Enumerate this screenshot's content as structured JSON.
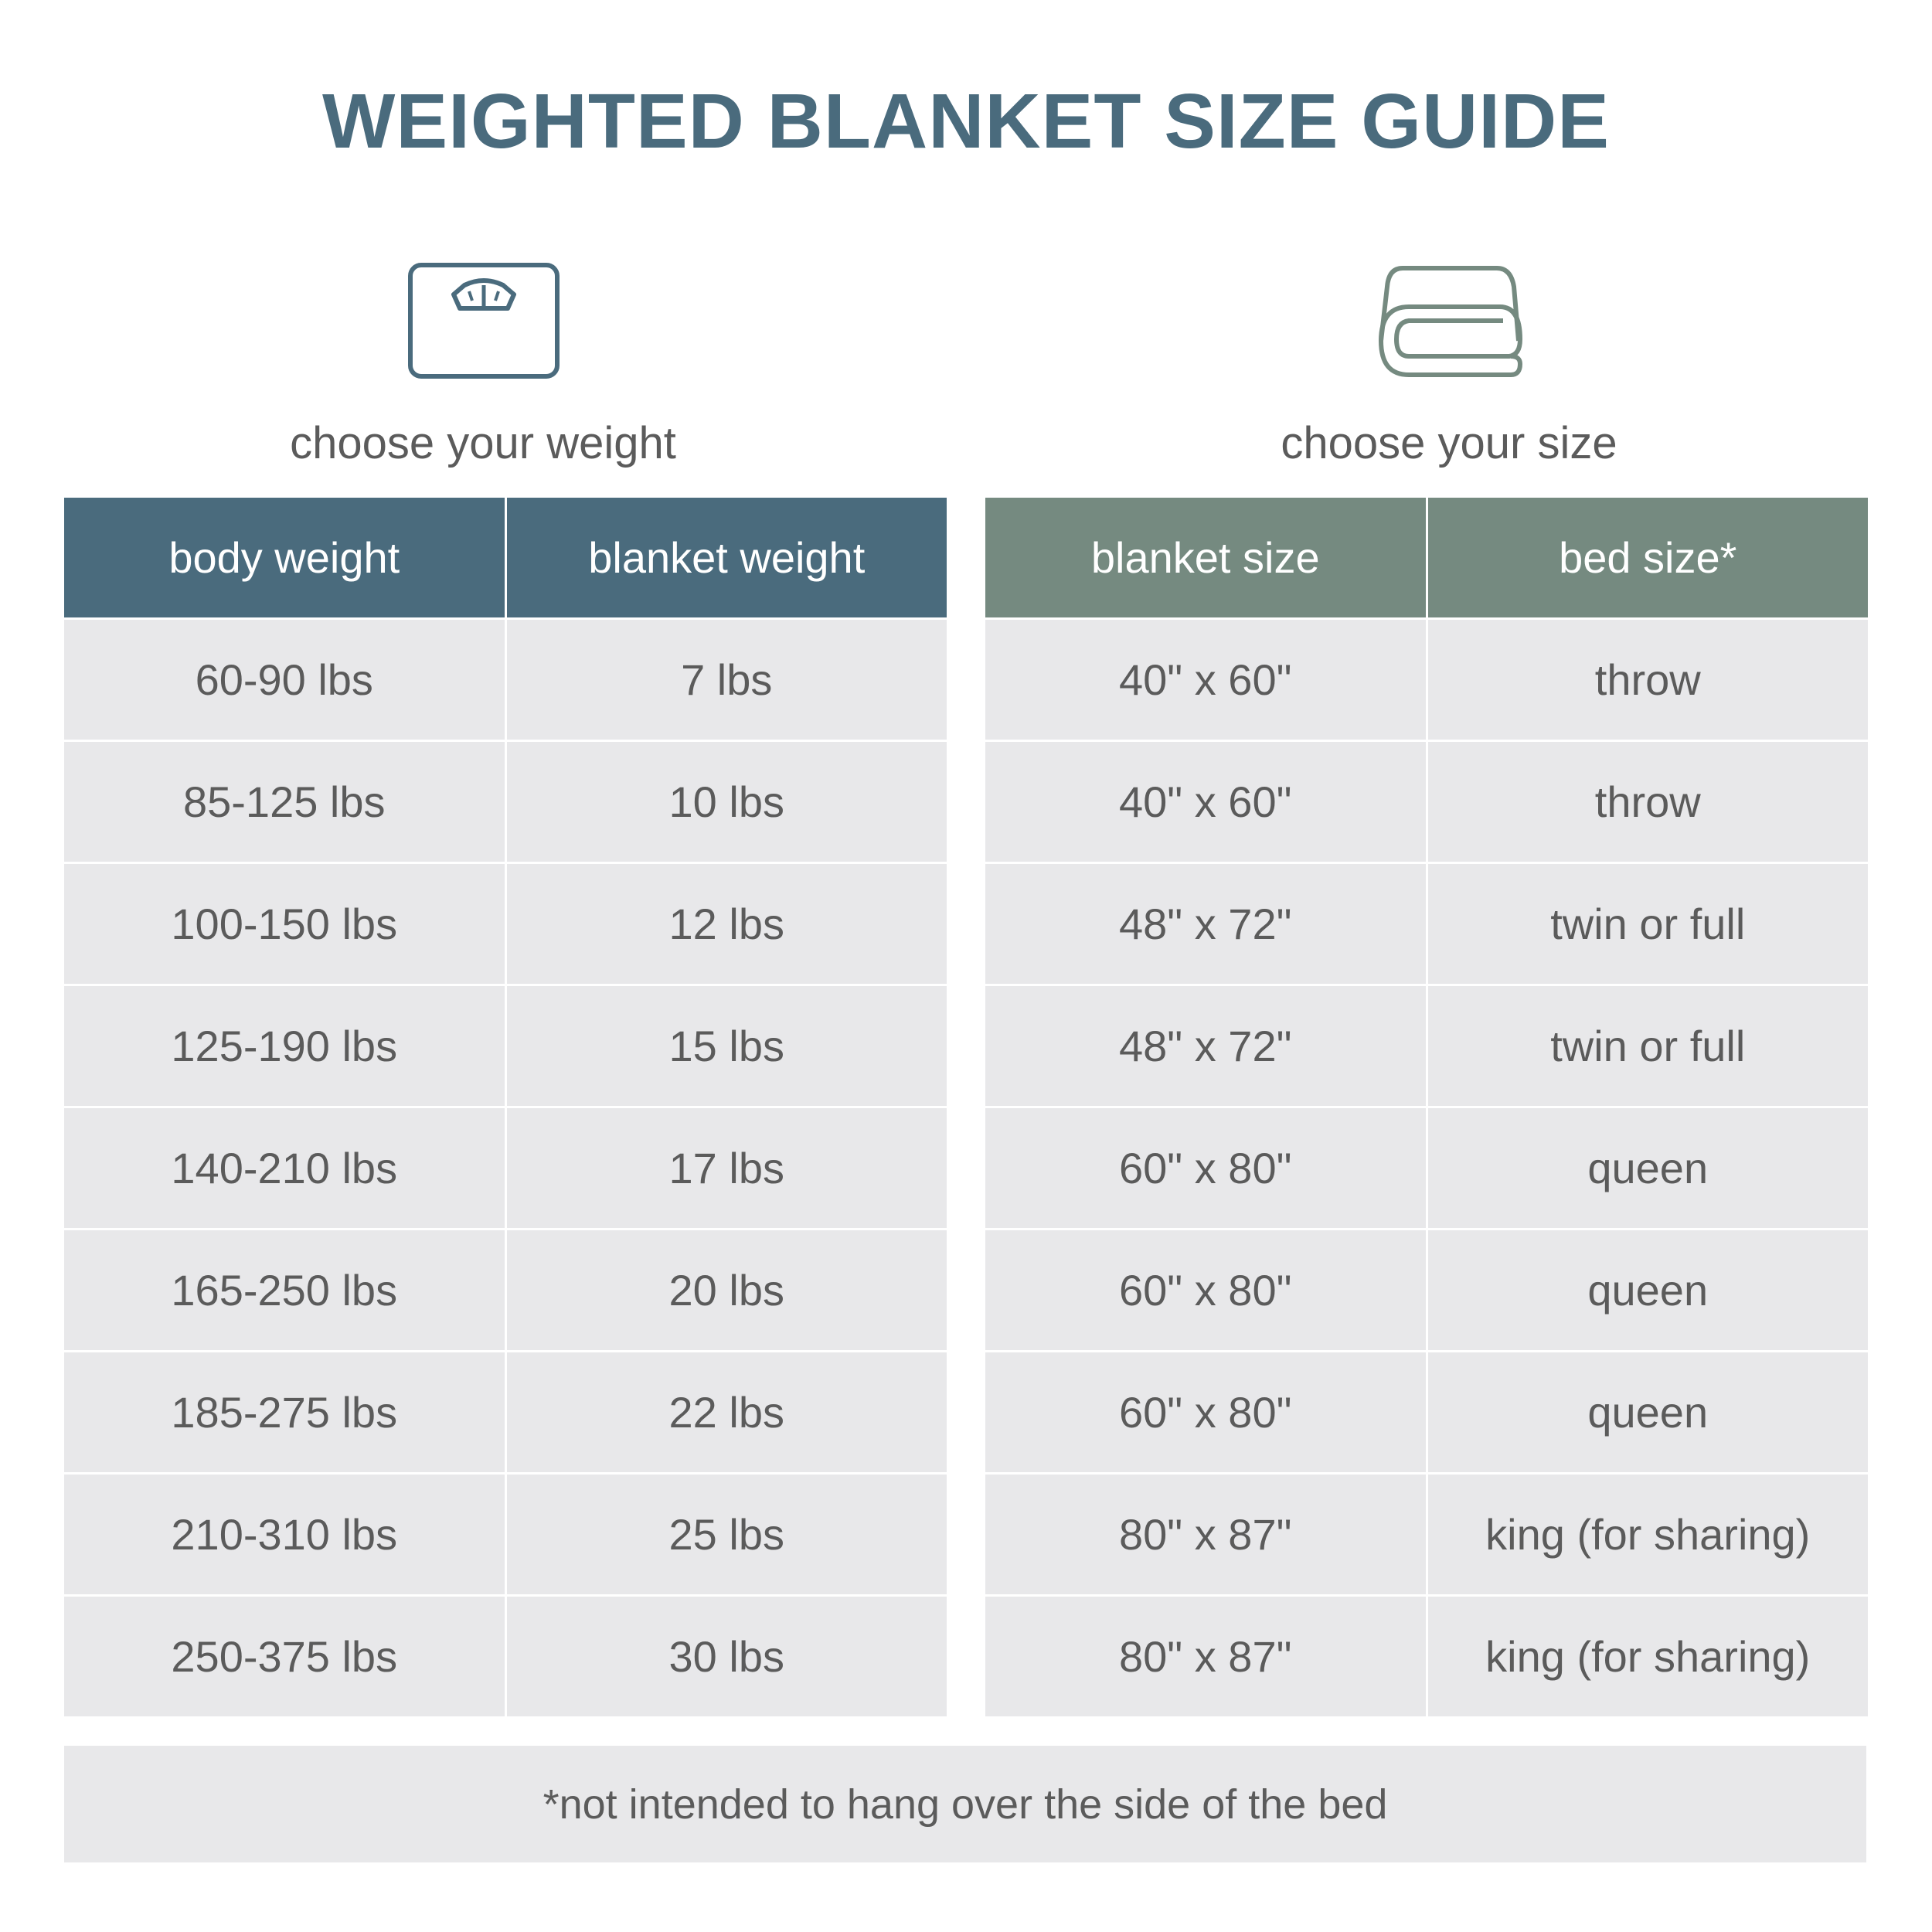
{
  "title": "WEIGHTED BLANKET SIZE GUIDE",
  "colors": {
    "weight_header": "#4a6b7d",
    "size_header": "#758a80",
    "row_bg": "#e8e8ea"
  },
  "weight_section": {
    "icon": "scale-icon",
    "subtitle": "choose your weight",
    "headers": [
      "body weight",
      "blanket weight"
    ],
    "rows": [
      [
        "60-90 lbs",
        "7 lbs"
      ],
      [
        "85-125 lbs",
        "10 lbs"
      ],
      [
        "100-150 lbs",
        "12 lbs"
      ],
      [
        "125-190 lbs",
        "15 lbs"
      ],
      [
        "140-210 lbs",
        "17 lbs"
      ],
      [
        "165-250 lbs",
        "20 lbs"
      ],
      [
        "185-275 lbs",
        "22 lbs"
      ],
      [
        "210-310 lbs",
        "25 lbs"
      ],
      [
        "250-375 lbs",
        "30 lbs"
      ]
    ]
  },
  "size_section": {
    "icon": "folded-blanket-icon",
    "subtitle": "choose your size",
    "headers": [
      "blanket size",
      "bed size*"
    ],
    "rows": [
      [
        "40\" x 60\"",
        "throw"
      ],
      [
        "40\" x 60\"",
        "throw"
      ],
      [
        "48\" x 72\"",
        "twin or full"
      ],
      [
        "48\" x 72\"",
        "twin or full"
      ],
      [
        "60\" x 80\"",
        "queen"
      ],
      [
        "60\" x 80\"",
        "queen"
      ],
      [
        "60\" x 80\"",
        "queen"
      ],
      [
        "80\" x 87\"",
        "king (for sharing)"
      ],
      [
        "80\" x 87\"",
        "king (for sharing)"
      ]
    ]
  },
  "footnote": "*not intended to hang over the side of the bed"
}
